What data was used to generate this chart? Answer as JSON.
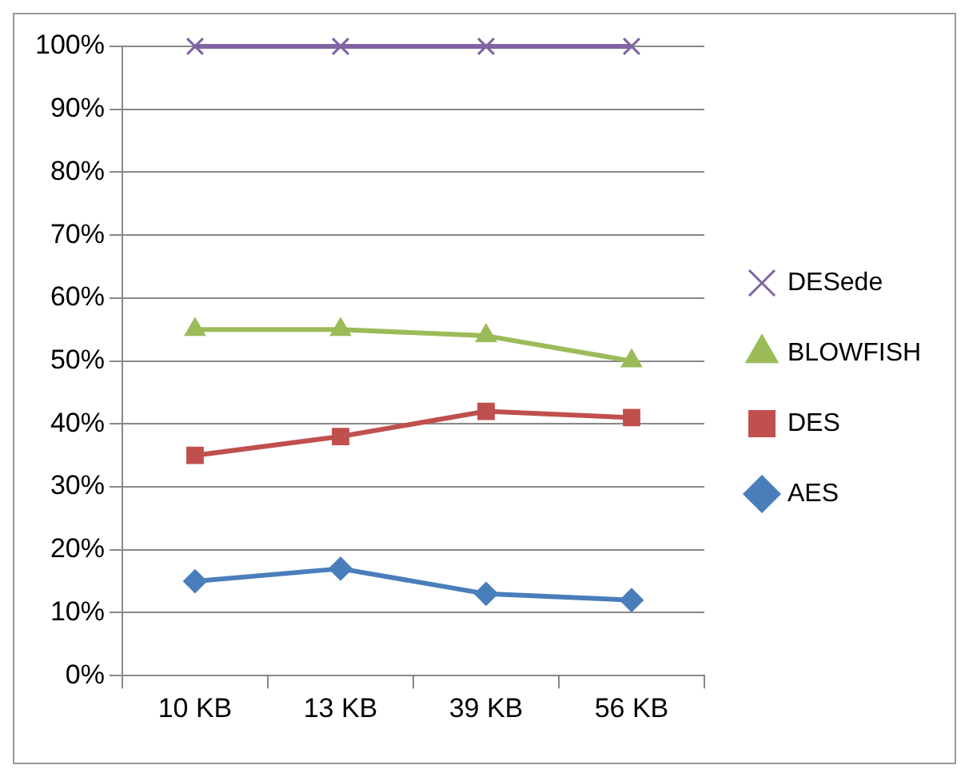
{
  "chart_data": {
    "type": "line",
    "categories": [
      "10 KB",
      "13 KB",
      "39 KB",
      "56 KB"
    ],
    "series": [
      {
        "name": "DESede",
        "color": "#8064a2",
        "marker": "cross",
        "values": [
          100,
          100,
          100,
          100
        ]
      },
      {
        "name": "BLOWFISH",
        "color": "#9bbb59",
        "marker": "triangle",
        "values": [
          55,
          55,
          54,
          50
        ]
      },
      {
        "name": "DES",
        "color": "#c0504d",
        "marker": "square",
        "values": [
          35,
          38,
          42,
          41
        ]
      },
      {
        "name": "AES",
        "color": "#4a7ebb",
        "marker": "diamond",
        "values": [
          15,
          17,
          13,
          12
        ]
      }
    ],
    "ylim": [
      0,
      100
    ],
    "yticks": [
      {
        "value": 0,
        "label": "0%"
      },
      {
        "value": 10,
        "label": "10%"
      },
      {
        "value": 20,
        "label": "20%"
      },
      {
        "value": 30,
        "label": "30%"
      },
      {
        "value": 40,
        "label": "40%"
      },
      {
        "value": 50,
        "label": "50%"
      },
      {
        "value": 60,
        "label": "60%"
      },
      {
        "value": 70,
        "label": "70%"
      },
      {
        "value": 80,
        "label": "80%"
      },
      {
        "value": 90,
        "label": "90%"
      },
      {
        "value": 100,
        "label": "100%"
      }
    ],
    "grid": "y",
    "legend": "right",
    "line_style": "solid"
  }
}
